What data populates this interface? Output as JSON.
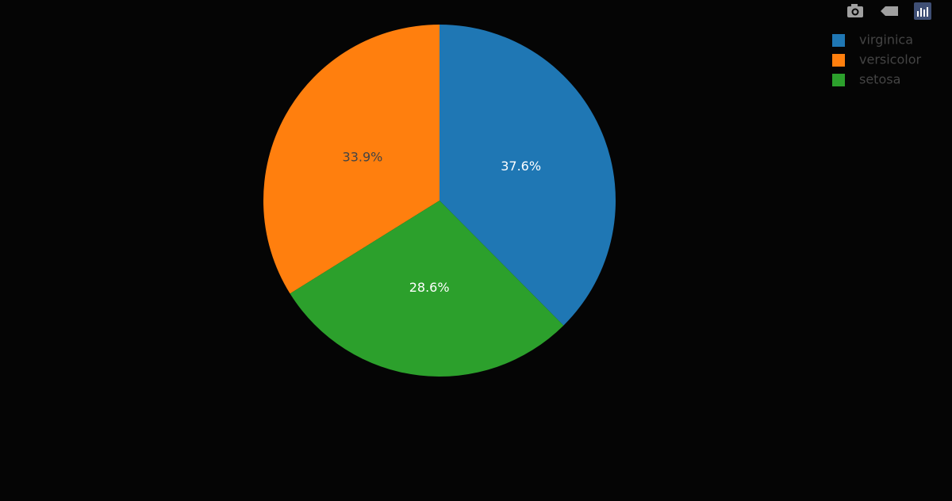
{
  "chart_data": {
    "type": "pie",
    "categories": [
      "virginica",
      "versicolor",
      "setosa"
    ],
    "values": [
      37.6,
      33.9,
      28.6
    ],
    "value_labels": [
      "37.6%",
      "33.9%",
      "28.6%"
    ],
    "colors": [
      "#1f77b4",
      "#ff7f0e",
      "#2ca02c"
    ],
    "direction": "counterclockwise",
    "legend": "top-right"
  }
}
